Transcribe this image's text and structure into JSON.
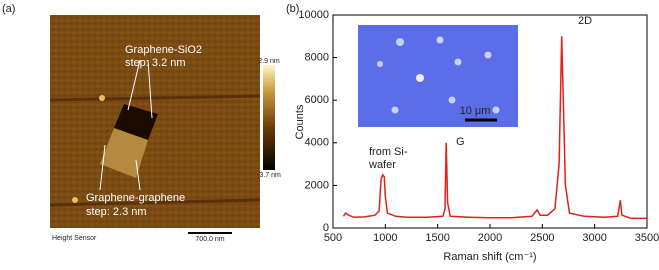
{
  "afm_image": {
    "panel_label": "(a)",
    "label_top_line1": "Graphene-SiO2",
    "label_top_line2": "step: 3.2 nm",
    "label_bottom_line1": "Graphene-graphene",
    "label_bottom_line2": "step: 2.3 nm",
    "colorbar_max": "2.9 nm",
    "colorbar_min": "-3.7 nm",
    "channel": "Height Sensor",
    "scale_bar": "700.0 nm"
  },
  "chart_data": {
    "type": "line",
    "panel_label": "(b)",
    "xlabel": "Raman shift (cm⁻¹)",
    "ylabel": "Counts",
    "color": "#e3201b",
    "x": [
      600,
      620,
      650,
      700,
      800,
      900,
      940,
      960,
      975,
      990,
      1000,
      1020,
      1100,
      1200,
      1400,
      1550,
      1570,
      1582,
      1595,
      1620,
      1800,
      2000,
      2200,
      2400,
      2450,
      2480,
      2550,
      2620,
      2660,
      2685,
      2700,
      2720,
      2760,
      2900,
      3100,
      3220,
      3245,
      3260,
      3350,
      3500
    ],
    "values": [
      550,
      700,
      600,
      500,
      520,
      600,
      800,
      2300,
      2500,
      2400,
      1500,
      700,
      550,
      500,
      500,
      550,
      900,
      4000,
      1200,
      550,
      500,
      480,
      480,
      550,
      850,
      600,
      600,
      900,
      3000,
      9000,
      6000,
      2000,
      700,
      550,
      500,
      550,
      1300,
      600,
      450,
      450
    ],
    "xlim": [
      500,
      3500
    ],
    "xticks": [
      500,
      1000,
      1500,
      2000,
      2500,
      3000,
      3500
    ],
    "ylim": [
      0,
      10000
    ],
    "yticks": [
      0,
      2000,
      4000,
      6000,
      8000,
      10000
    ],
    "annotations": [
      "from Si-",
      "wafer",
      "G",
      "2D"
    ],
    "inset_scale_bar": "10 μm"
  }
}
